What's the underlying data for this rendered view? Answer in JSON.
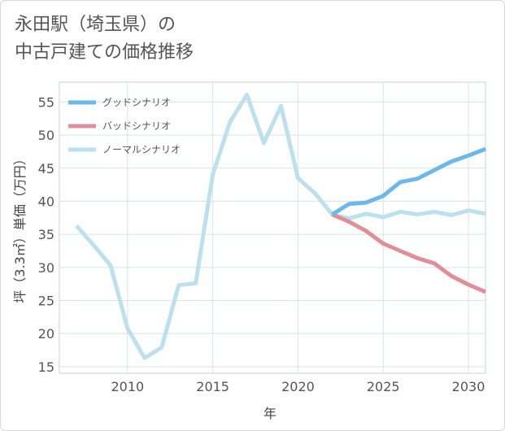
{
  "title_lines": [
    "永田駅（埼玉県）の",
    "中古戸建ての価格推移"
  ],
  "chart_data": {
    "type": "line",
    "title": "永田駅（埼玉県）の中古戸建ての価格推移",
    "xlabel": "年",
    "ylabel": "坪（3.3㎡）単価（万円）",
    "xlim": [
      2006,
      2031
    ],
    "ylim": [
      14,
      58
    ],
    "xticks": [
      2010,
      2015,
      2020,
      2025,
      2030
    ],
    "yticks": [
      15,
      20,
      25,
      30,
      35,
      40,
      45,
      50,
      55
    ],
    "grid": true,
    "legend_position": "top-left",
    "series": [
      {
        "name": "グッドシナリオ",
        "color": "#6cb8ea",
        "x": [
          2022,
          2023,
          2024,
          2025,
          2026,
          2027,
          2028,
          2029,
          2030,
          2031
        ],
        "y": [
          38.0,
          39.6,
          39.8,
          40.8,
          42.9,
          43.4,
          44.7,
          46.0,
          46.9,
          47.9
        ]
      },
      {
        "name": "バッドシナリオ",
        "color": "#e08f99",
        "x": [
          2022,
          2023,
          2024,
          2025,
          2026,
          2027,
          2028,
          2029,
          2030,
          2031
        ],
        "y": [
          38.0,
          36.9,
          35.5,
          33.6,
          32.5,
          31.4,
          30.6,
          28.7,
          27.4,
          26.3
        ]
      },
      {
        "name": "ノーマルシナリオ",
        "color": "#bde0ee",
        "x": [
          2007,
          2008,
          2009,
          2010,
          2011,
          2012,
          2013,
          2014,
          2015,
          2016,
          2017,
          2018,
          2019,
          2020,
          2021,
          2022,
          2023,
          2024,
          2025,
          2026,
          2027,
          2028,
          2029,
          2030,
          2031
        ],
        "y": [
          36.3,
          33.4,
          30.3,
          20.8,
          16.3,
          17.9,
          27.3,
          27.6,
          44.0,
          51.9,
          56.1,
          48.8,
          54.4,
          43.5,
          41.2,
          38.0,
          37.4,
          38.1,
          37.6,
          38.4,
          38.0,
          38.4,
          37.9,
          38.6,
          38.1
        ]
      }
    ]
  }
}
